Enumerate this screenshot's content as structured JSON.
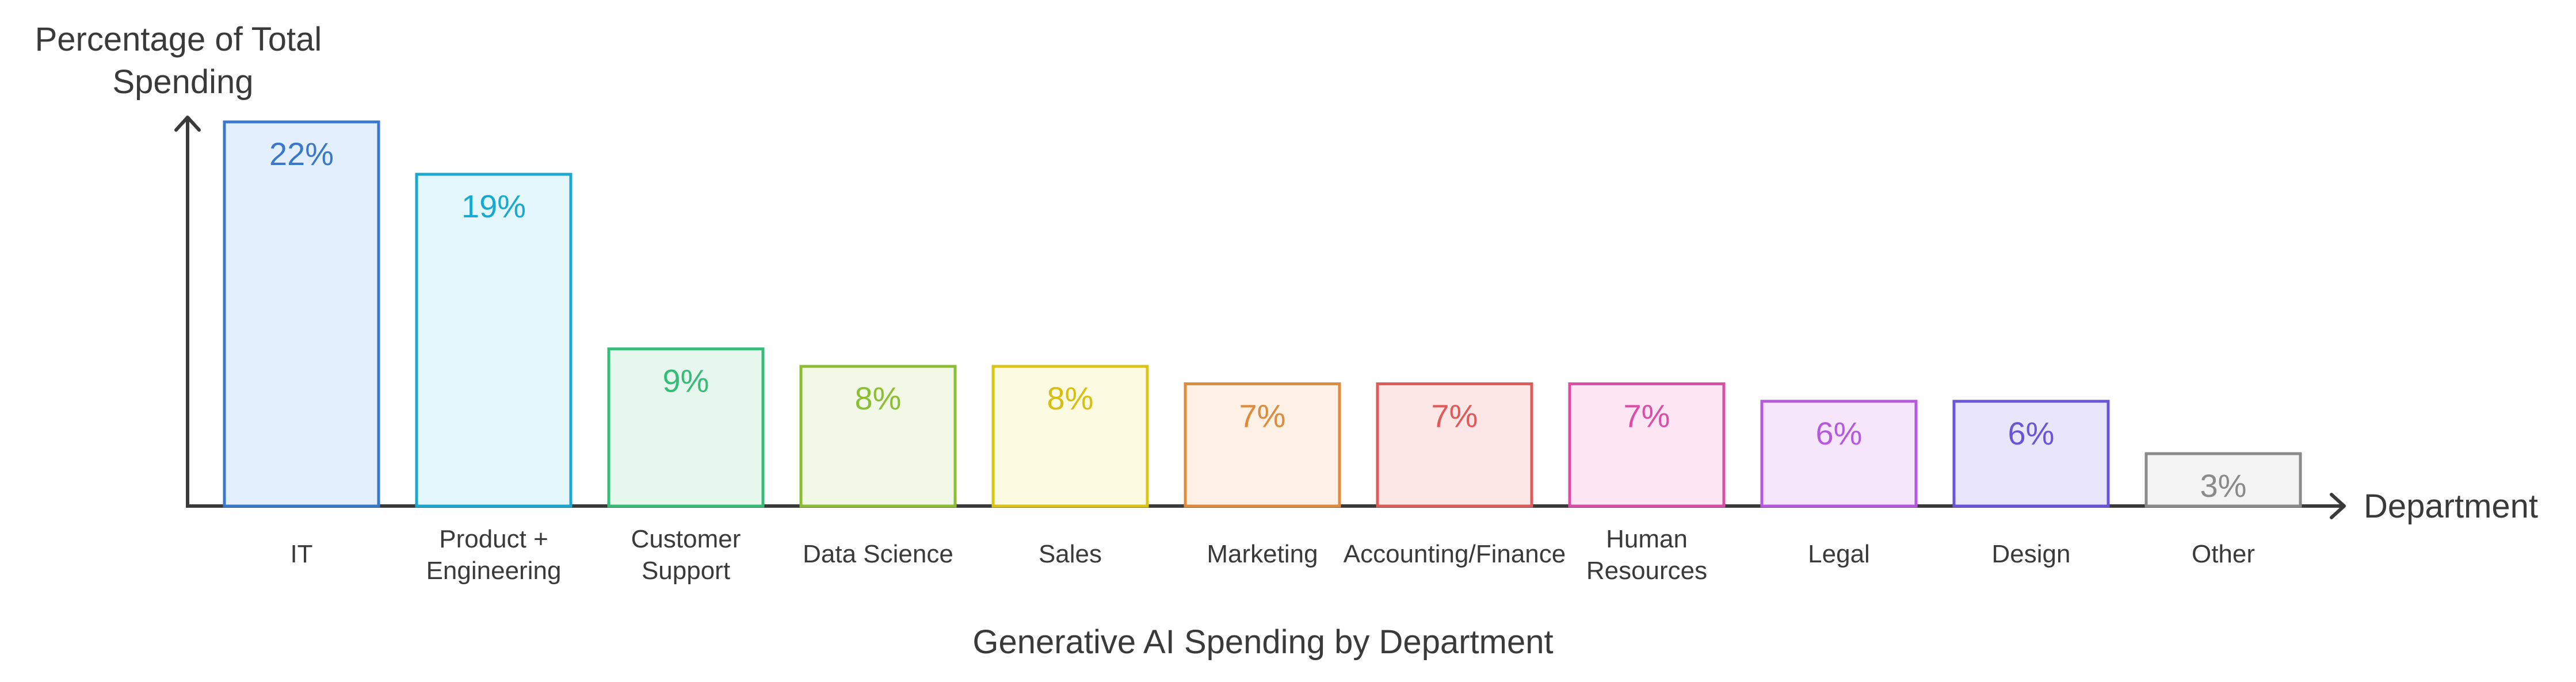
{
  "chart_data": {
    "type": "bar",
    "title": "Generative AI Spending by Department",
    "ylabel": [
      "Percentage of Total",
      "Spending"
    ],
    "xlabel": "Department",
    "ylim": [
      0,
      22
    ],
    "categories": [
      [
        "IT"
      ],
      [
        "Product +",
        "Engineering"
      ],
      [
        "Customer",
        "Support"
      ],
      [
        "Data Science"
      ],
      [
        "Sales"
      ],
      [
        "Marketing"
      ],
      [
        "Accounting/Finance"
      ],
      [
        "Human",
        "Resources"
      ],
      [
        "Legal"
      ],
      [
        "Design"
      ],
      [
        "Other"
      ]
    ],
    "values": [
      22,
      19,
      9,
      8,
      8,
      7,
      7,
      7,
      6,
      6,
      3
    ],
    "value_labels": [
      "22%",
      "19%",
      "9%",
      "8%",
      "8%",
      "7%",
      "7%",
      "7%",
      "6%",
      "6%",
      "3%"
    ],
    "colors": [
      {
        "stroke": "#3a78c9",
        "fill": "#e3effd",
        "text": "#3a78c9"
      },
      {
        "stroke": "#19a9cf",
        "fill": "#e3f7fc",
        "text": "#19a9cf"
      },
      {
        "stroke": "#37bb79",
        "fill": "#e6f8ee",
        "text": "#37bb79"
      },
      {
        "stroke": "#8cbd33",
        "fill": "#f1f8e6",
        "text": "#8cbd33"
      },
      {
        "stroke": "#dcc414",
        "fill": "#fcfae1",
        "text": "#d8be10"
      },
      {
        "stroke": "#e08a3c",
        "fill": "#fdf0e4",
        "text": "#e08a3c"
      },
      {
        "stroke": "#e05a5a",
        "fill": "#fde6e6",
        "text": "#e05a5a"
      },
      {
        "stroke": "#dc4ea6",
        "fill": "#fce6f4",
        "text": "#dc4ea6"
      },
      {
        "stroke": "#b659df",
        "fill": "#f5e6fc",
        "text": "#b659df"
      },
      {
        "stroke": "#6c54d8",
        "fill": "#e9e6fc",
        "text": "#6c54d8"
      },
      {
        "stroke": "#8a8a8a",
        "fill": "#f3f3f3",
        "text": "#8a8a8a"
      }
    ],
    "grid": false,
    "legend": "none"
  }
}
